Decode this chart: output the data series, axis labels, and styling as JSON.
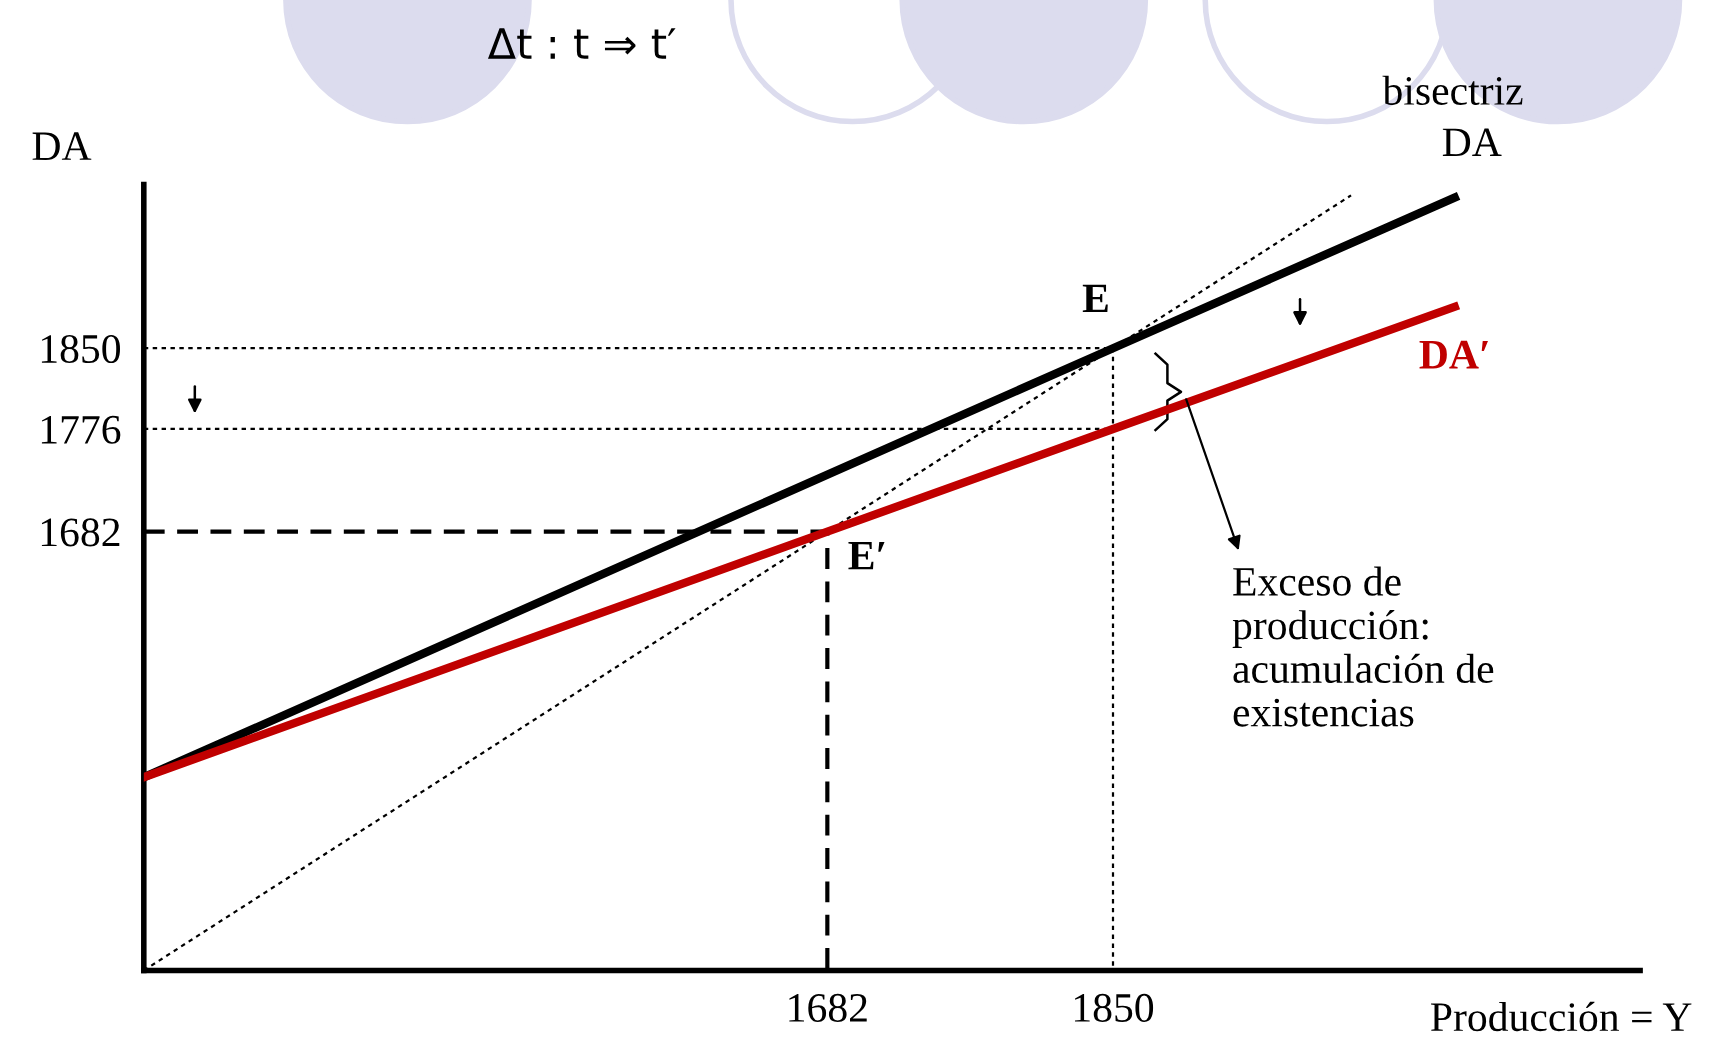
{
  "chart_data": {
    "type": "line",
    "ylabel": "DA",
    "xlabel": "Producción = Y",
    "xlim": [
      1280,
      2160
    ],
    "ylim": [
      1280,
      2000
    ],
    "xticks": [
      1682,
      1850
    ],
    "yticks": [
      1682,
      1776,
      1850
    ],
    "grid": false,
    "legend": false,
    "marker": "none",
    "series": [
      {
        "name": "DA",
        "color": "#000000",
        "line_style": "solid",
        "x": [
          1280,
          1850,
          2051
        ],
        "values": [
          1457,
          1850,
          1988
        ]
      },
      {
        "name": "DA′",
        "color": "#c00000",
        "line_style": "solid",
        "x": [
          1280,
          1682,
          1850,
          2051
        ],
        "values": [
          1457,
          1682,
          1776,
          1888
        ]
      },
      {
        "name": "bisectriz",
        "color": "#000000",
        "line_style": "dotted",
        "x": [
          1280,
          1990
        ],
        "values": [
          1280,
          1990
        ]
      },
      {
        "color": "#000000",
        "line_style": "dotted",
        "x": [
          1280,
          1850,
          1850
        ],
        "values": [
          1850,
          1850,
          1280
        ]
      },
      {
        "color": "#000000",
        "line_style": "dotted",
        "x": [
          1280,
          1850
        ],
        "values": [
          1776,
          1776
        ]
      },
      {
        "color": "#000000",
        "line_style": "dashed",
        "x": [
          1280,
          1682,
          1682
        ],
        "values": [
          1682,
          1682,
          1280
        ]
      }
    ],
    "annotations": [
      {
        "text": "E",
        "x": 1850,
        "y": 1850
      },
      {
        "text": "E′",
        "x": 1682,
        "y": 1682
      },
      "Exceso de\nproducción:\nacumulación de\nexistencias",
      "Δt : t ⇒ t′"
    ]
  }
}
